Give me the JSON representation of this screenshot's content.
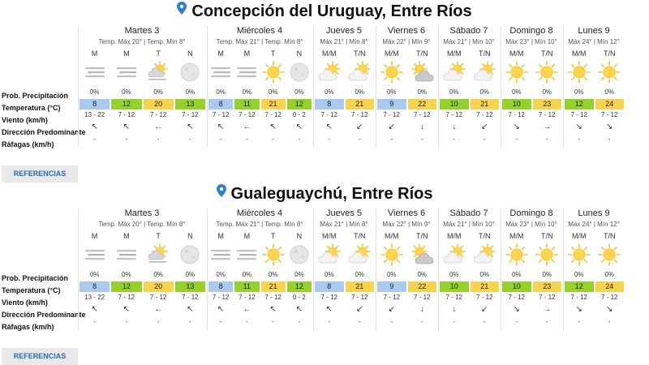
{
  "labels": {
    "prob": "Prob. Precipitación",
    "temp": "Temperatura (°C)",
    "wind": "Viento (km/h)",
    "dir": "Dirección Predominante",
    "gust": "Ráfagas (km/h)"
  },
  "colors": {
    "cool": "#a9c9ee",
    "mild": "#95d12a",
    "warm": "#f7d350",
    "link": "#2a6bb3"
  },
  "blocks": [
    {
      "title": "Concepción del Uruguay, Entre Ríos",
      "button": "REFERENCIAS",
      "days": [
        {
          "name": "Martes 3",
          "minmax": "Temp. Máx 20° | Temp. Mín 8°",
          "cols": [
            {
              "p": "M",
              "icon": "fog",
              "prob": "0%",
              "temp": "8",
              "tc": "cool",
              "wind": "13 - 22",
              "dir": "↖",
              "gust": "-"
            },
            {
              "p": "M",
              "icon": "fog",
              "prob": "0%",
              "temp": "12",
              "tc": "mild",
              "wind": "7 - 12",
              "dir": "↖",
              "gust": "-"
            },
            {
              "p": "T",
              "icon": "sun-fog",
              "prob": "0%",
              "temp": "20",
              "tc": "warm",
              "wind": "7 - 12",
              "dir": "←",
              "gust": "-"
            },
            {
              "p": "N",
              "icon": "moon",
              "prob": "0%",
              "temp": "13",
              "tc": "mild",
              "wind": "7 - 12",
              "dir": "↖",
              "gust": "-"
            }
          ]
        },
        {
          "name": "Miércoles 4",
          "minmax": "Temp. Máx 21° | Temp. Mín 8°",
          "cols": [
            {
              "p": "M",
              "icon": "fog",
              "prob": "0%",
              "temp": "8",
              "tc": "cool",
              "wind": "7 - 12",
              "dir": "↖",
              "gust": "-"
            },
            {
              "p": "M",
              "icon": "fog",
              "prob": "0%",
              "temp": "11",
              "tc": "mild",
              "wind": "7 - 12",
              "dir": "←",
              "gust": "-"
            },
            {
              "p": "T",
              "icon": "sun",
              "prob": "0%",
              "temp": "21",
              "tc": "warm",
              "wind": "7 - 12",
              "dir": "↖",
              "gust": "-"
            },
            {
              "p": "N",
              "icon": "moon",
              "prob": "0%",
              "temp": "12",
              "tc": "mild",
              "wind": "0 - 2",
              "dir": "↖",
              "gust": "-"
            }
          ]
        },
        {
          "name": "Jueves 5",
          "minmax": "Máx 21° | Mín 8°",
          "cols": [
            {
              "p": "M/M",
              "icon": "sun-cloud",
              "prob": "0%",
              "temp": "8",
              "tc": "cool",
              "wind": "7 - 12",
              "dir": "↖",
              "gust": "-"
            },
            {
              "p": "T/N",
              "icon": "sun-cloud",
              "prob": "0%",
              "temp": "21",
              "tc": "warm",
              "wind": "7 - 12",
              "dir": "↙",
              "gust": "-"
            }
          ]
        },
        {
          "name": "Viernes 6",
          "minmax": "Máx 22° | Mín 9°",
          "cols": [
            {
              "p": "M/M",
              "icon": "sun",
              "prob": "0%",
              "temp": "9",
              "tc": "cool",
              "wind": "7 - 12",
              "dir": "↙",
              "gust": "-"
            },
            {
              "p": "T/N",
              "icon": "sun-cloud-grey",
              "prob": "0%",
              "temp": "22",
              "tc": "warm",
              "wind": "7 - 12",
              "dir": "↓",
              "gust": "-"
            }
          ]
        },
        {
          "name": "Sábado 7",
          "minmax": "Máx 21° | Mín 10°",
          "cols": [
            {
              "p": "M/M",
              "icon": "sun-cloud",
              "prob": "0%",
              "temp": "10",
              "tc": "mild",
              "wind": "7 - 12",
              "dir": "↓",
              "gust": "-"
            },
            {
              "p": "T/N",
              "icon": "sun-cloud",
              "prob": "0%",
              "temp": "21",
              "tc": "warm",
              "wind": "7 - 12",
              "dir": "↙",
              "gust": "-"
            }
          ]
        },
        {
          "name": "Domingo 8",
          "minmax": "Máx 23° | Mín 10°",
          "cols": [
            {
              "p": "M/M",
              "icon": "sun",
              "prob": "0%",
              "temp": "10",
              "tc": "mild",
              "wind": "7 - 12",
              "dir": "↘",
              "gust": "-"
            },
            {
              "p": "T/N",
              "icon": "sun",
              "prob": "0%",
              "temp": "23",
              "tc": "warm",
              "wind": "7 - 12",
              "dir": "→",
              "gust": "-"
            }
          ]
        },
        {
          "name": "Lunes 9",
          "minmax": "Máx 24° | Mín 12°",
          "cols": [
            {
              "p": "M/M",
              "icon": "sun",
              "prob": "0%",
              "temp": "12",
              "tc": "mild",
              "wind": "7 - 12",
              "dir": "↘",
              "gust": "-"
            },
            {
              "p": "T/N",
              "icon": "sun",
              "prob": "0%",
              "temp": "24",
              "tc": "warm",
              "wind": "7 - 12",
              "dir": "↘",
              "gust": "-"
            }
          ]
        }
      ]
    },
    {
      "title": "Gualeguaychú, Entre Ríos",
      "button": "REFERENCIAS",
      "days": [
        {
          "name": "Martes 3",
          "minmax": "Temp. Máx 20° | Temp. Mín 8°",
          "cols": [
            {
              "p": "M",
              "icon": "fog",
              "prob": "0%",
              "temp": "8",
              "tc": "cool",
              "wind": "13 - 22",
              "dir": "↖",
              "gust": "-"
            },
            {
              "p": "M",
              "icon": "fog",
              "prob": "0%",
              "temp": "12",
              "tc": "mild",
              "wind": "7 - 12",
              "dir": "↖",
              "gust": "-"
            },
            {
              "p": "T",
              "icon": "sun-fog",
              "prob": "0%",
              "temp": "20",
              "tc": "warm",
              "wind": "7 - 12",
              "dir": "←",
              "gust": "-"
            },
            {
              "p": "N",
              "icon": "moon",
              "prob": "0%",
              "temp": "13",
              "tc": "mild",
              "wind": "7 - 12",
              "dir": "↖",
              "gust": "-"
            }
          ]
        },
        {
          "name": "Miércoles 4",
          "minmax": "Temp. Máx 21° | Temp. Mín 8°",
          "cols": [
            {
              "p": "M",
              "icon": "fog",
              "prob": "0%",
              "temp": "8",
              "tc": "cool",
              "wind": "7 - 12",
              "dir": "↖",
              "gust": "-"
            },
            {
              "p": "M",
              "icon": "fog",
              "prob": "0%",
              "temp": "11",
              "tc": "mild",
              "wind": "7 - 12",
              "dir": "←",
              "gust": "-"
            },
            {
              "p": "T",
              "icon": "sun",
              "prob": "0%",
              "temp": "21",
              "tc": "warm",
              "wind": "7 - 12",
              "dir": "↖",
              "gust": "-"
            },
            {
              "p": "N",
              "icon": "moon",
              "prob": "0%",
              "temp": "12",
              "tc": "mild",
              "wind": "0 - 2",
              "dir": "↖",
              "gust": "-"
            }
          ]
        },
        {
          "name": "Jueves 5",
          "minmax": "Máx 21° | Mín 8°",
          "cols": [
            {
              "p": "M/M",
              "icon": "sun-cloud",
              "prob": "0%",
              "temp": "8",
              "tc": "cool",
              "wind": "7 - 12",
              "dir": "↖",
              "gust": "-"
            },
            {
              "p": "T/N",
              "icon": "sun-cloud",
              "prob": "0%",
              "temp": "21",
              "tc": "warm",
              "wind": "7 - 12",
              "dir": "↙",
              "gust": "-"
            }
          ]
        },
        {
          "name": "Viernes 6",
          "minmax": "Máx 22° | Mín 9°",
          "cols": [
            {
              "p": "M/M",
              "icon": "sun",
              "prob": "0%",
              "temp": "9",
              "tc": "cool",
              "wind": "7 - 12",
              "dir": "↙",
              "gust": "-"
            },
            {
              "p": "T/N",
              "icon": "sun-cloud-grey",
              "prob": "0%",
              "temp": "22",
              "tc": "warm",
              "wind": "7 - 12",
              "dir": "↓",
              "gust": "-"
            }
          ]
        },
        {
          "name": "Sábado 7",
          "minmax": "Máx 21° | Mín 10°",
          "cols": [
            {
              "p": "M/M",
              "icon": "sun-cloud",
              "prob": "0%",
              "temp": "10",
              "tc": "mild",
              "wind": "7 - 12",
              "dir": "↓",
              "gust": "-"
            },
            {
              "p": "T/N",
              "icon": "sun-cloud",
              "prob": "0%",
              "temp": "21",
              "tc": "warm",
              "wind": "7 - 12",
              "dir": "↙",
              "gust": "-"
            }
          ]
        },
        {
          "name": "Domingo 8",
          "minmax": "Máx 23° | Mín 10°",
          "cols": [
            {
              "p": "M/M",
              "icon": "sun",
              "prob": "0%",
              "temp": "10",
              "tc": "mild",
              "wind": "7 - 12",
              "dir": "↘",
              "gust": "-"
            },
            {
              "p": "T/N",
              "icon": "sun",
              "prob": "0%",
              "temp": "23",
              "tc": "warm",
              "wind": "7 - 12",
              "dir": "→",
              "gust": "-"
            }
          ]
        },
        {
          "name": "Lunes 9",
          "minmax": "Máx 24° | Mín 12°",
          "cols": [
            {
              "p": "M/M",
              "icon": "sun",
              "prob": "0%",
              "temp": "12",
              "tc": "mild",
              "wind": "7 - 12",
              "dir": "↘",
              "gust": "-"
            },
            {
              "p": "T/N",
              "icon": "sun",
              "prob": "0%",
              "temp": "24",
              "tc": "warm",
              "wind": "7 - 12",
              "dir": "↘",
              "gust": "-"
            }
          ]
        }
      ]
    }
  ]
}
